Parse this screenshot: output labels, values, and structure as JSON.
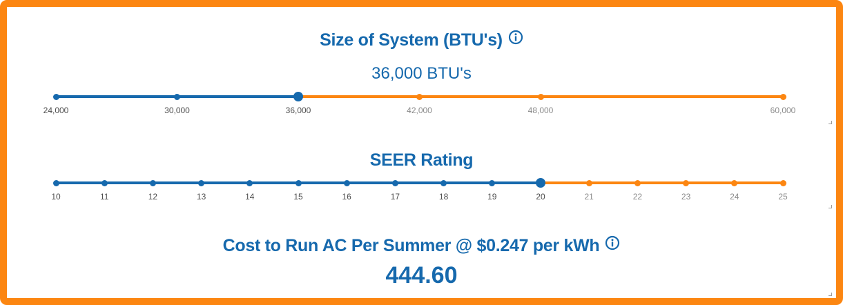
{
  "colors": {
    "accent": "#1669ad",
    "border": "#fc8611",
    "inactive_track": "#fc8611"
  },
  "btu": {
    "title": "Size of System (BTU's)",
    "info_icon": "info-icon",
    "value_display": "36,000 BTU's",
    "ticks": [
      {
        "value": 24000,
        "label": "24,000"
      },
      {
        "value": 30000,
        "label": "30,000"
      },
      {
        "value": 36000,
        "label": "36,000"
      },
      {
        "value": 42000,
        "label": "42,000"
      },
      {
        "value": 48000,
        "label": "48,000"
      },
      {
        "value": 60000,
        "label": "60,000"
      }
    ],
    "min": 24000,
    "max": 60000,
    "selected": 36000
  },
  "seer": {
    "title": "SEER Rating",
    "ticks": [
      {
        "value": 10,
        "label": "10"
      },
      {
        "value": 11,
        "label": "11"
      },
      {
        "value": 12,
        "label": "12"
      },
      {
        "value": 13,
        "label": "13"
      },
      {
        "value": 14,
        "label": "14"
      },
      {
        "value": 15,
        "label": "15"
      },
      {
        "value": 16,
        "label": "16"
      },
      {
        "value": 17,
        "label": "17"
      },
      {
        "value": 18,
        "label": "18"
      },
      {
        "value": 19,
        "label": "19"
      },
      {
        "value": 20,
        "label": "20"
      },
      {
        "value": 21,
        "label": "21"
      },
      {
        "value": 22,
        "label": "22"
      },
      {
        "value": 23,
        "label": "23"
      },
      {
        "value": 24,
        "label": "24"
      },
      {
        "value": 25,
        "label": "25"
      }
    ],
    "min": 10,
    "max": 25,
    "selected": 20
  },
  "cost": {
    "title": "Cost to Run AC Per Summer @ $0.247 per kWh",
    "info_icon": "info-icon",
    "value": "444.60"
  }
}
